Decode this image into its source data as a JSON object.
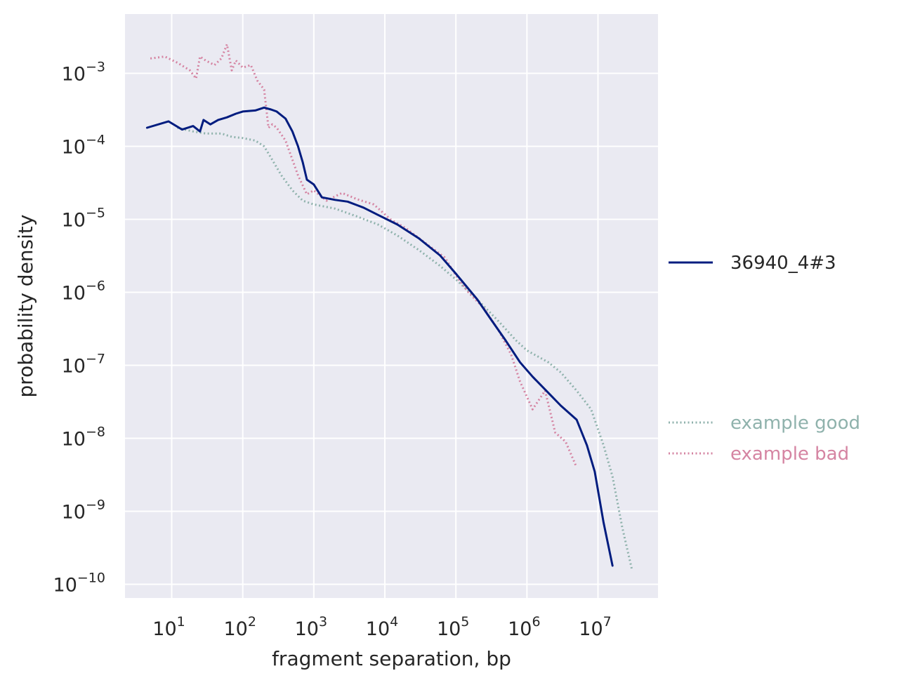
{
  "chart_data": {
    "type": "line",
    "title": "",
    "xlabel": "fragment separation, bp",
    "ylabel": "probability density",
    "xscale": "log",
    "yscale": "log",
    "xlim": [
      2.2,
      70000000
    ],
    "ylim": [
      6.5e-11,
      0.0065
    ],
    "grid": true,
    "x_tick_exponents": [
      1,
      2,
      3,
      4,
      5,
      6,
      7
    ],
    "y_tick_exponents": [
      -3,
      -4,
      -5,
      -6,
      -7,
      -8,
      -9,
      -10
    ],
    "tick_base": "10",
    "legend_placement": "right, outside plot",
    "legend": {
      "main": [
        "36940_4#3"
      ],
      "reference": [
        "example good",
        "example bad"
      ]
    },
    "series": [
      {
        "name": "36940_4#3",
        "style": "solid",
        "color": "#001c7f",
        "points": [
          [
            4.5,
            0.00018
          ],
          [
            9,
            0.00022
          ],
          [
            14,
            0.00017
          ],
          [
            20,
            0.00019
          ],
          [
            25,
            0.00016
          ],
          [
            28,
            0.00023
          ],
          [
            35,
            0.0002
          ],
          [
            45,
            0.00023
          ],
          [
            60,
            0.00025
          ],
          [
            80,
            0.00028
          ],
          [
            100,
            0.0003
          ],
          [
            150,
            0.00031
          ],
          [
            200,
            0.00034
          ],
          [
            250,
            0.00032
          ],
          [
            300,
            0.0003
          ],
          [
            400,
            0.00024
          ],
          [
            500,
            0.00016
          ],
          [
            600,
            0.0001
          ],
          [
            700,
            6e-05
          ],
          [
            800,
            3.5e-05
          ],
          [
            1000,
            3e-05
          ],
          [
            1300,
            2e-05
          ],
          [
            2000,
            1.85e-05
          ],
          [
            3000,
            1.75e-05
          ],
          [
            5000,
            1.45e-05
          ],
          [
            8000,
            1.15e-05
          ],
          [
            15000,
            8.5e-06
          ],
          [
            30000,
            5.5e-06
          ],
          [
            60000,
            3.2e-06
          ],
          [
            100000,
            1.8e-06
          ],
          [
            200000,
            8e-07
          ],
          [
            300000,
            4.5e-07
          ],
          [
            500000,
            2.2e-07
          ],
          [
            800000,
            1.1e-07
          ],
          [
            1200000,
            7e-08
          ],
          [
            2000000,
            4.2e-08
          ],
          [
            3000000,
            2.8e-08
          ],
          [
            5000000,
            1.8e-08
          ],
          [
            7000000,
            8e-09
          ],
          [
            9000000,
            3.5e-09
          ],
          [
            12000000,
            7e-10
          ],
          [
            16000000,
            1.8e-10
          ]
        ]
      },
      {
        "name": "example good",
        "style": "dotted",
        "color": "#8fb2ac",
        "points": [
          [
            12,
            0.00018
          ],
          [
            20,
            0.00016
          ],
          [
            30,
            0.00015
          ],
          [
            50,
            0.00015
          ],
          [
            70,
            0.000135
          ],
          [
            100,
            0.00013
          ],
          [
            150,
            0.00012
          ],
          [
            200,
            0.0001
          ],
          [
            250,
            7e-05
          ],
          [
            350,
            4e-05
          ],
          [
            500,
            2.5e-05
          ],
          [
            700,
            1.8e-05
          ],
          [
            1000,
            1.6e-05
          ],
          [
            2000,
            1.4e-05
          ],
          [
            4000,
            1.1e-05
          ],
          [
            8000,
            8.5e-06
          ],
          [
            15000,
            6e-06
          ],
          [
            30000,
            3.8e-06
          ],
          [
            60000,
            2.3e-06
          ],
          [
            100000,
            1.5e-06
          ],
          [
            200000,
            8e-07
          ],
          [
            400000,
            4e-07
          ],
          [
            700000,
            2.2e-07
          ],
          [
            1000000,
            1.6e-07
          ],
          [
            2000000,
            1.1e-07
          ],
          [
            3000000,
            8e-08
          ],
          [
            5000000,
            4.5e-08
          ],
          [
            8000000,
            2.5e-08
          ],
          [
            12000000,
            8e-09
          ],
          [
            16000000,
            3e-09
          ],
          [
            22000000,
            6e-10
          ],
          [
            30000000,
            1.6e-10
          ]
        ]
      },
      {
        "name": "example bad",
        "style": "dotted",
        "color": "#d584a2",
        "points": [
          [
            5,
            0.0016
          ],
          [
            8,
            0.0017
          ],
          [
            12,
            0.0014
          ],
          [
            18,
            0.0011
          ],
          [
            22,
            0.00085
          ],
          [
            25,
            0.0017
          ],
          [
            30,
            0.0015
          ],
          [
            40,
            0.0013
          ],
          [
            50,
            0.0016
          ],
          [
            60,
            0.0025
          ],
          [
            70,
            0.0011
          ],
          [
            80,
            0.0015
          ],
          [
            100,
            0.0012
          ],
          [
            130,
            0.0013
          ],
          [
            160,
            0.0008
          ],
          [
            200,
            0.0006
          ],
          [
            230,
            0.00018
          ],
          [
            260,
            0.0002
          ],
          [
            300,
            0.00018
          ],
          [
            400,
            0.00012
          ],
          [
            600,
            4e-05
          ],
          [
            800,
            2.2e-05
          ],
          [
            1000,
            2.5e-05
          ],
          [
            1500,
            1.8e-05
          ],
          [
            2500,
            2.3e-05
          ],
          [
            4000,
            1.9e-05
          ],
          [
            7000,
            1.6e-05
          ],
          [
            12000,
            1e-05
          ],
          [
            20000,
            7.5e-06
          ],
          [
            40000,
            4.5e-06
          ],
          [
            70000,
            3e-06
          ],
          [
            100000,
            1.7e-06
          ],
          [
            150000,
            1e-06
          ],
          [
            250000,
            6e-07
          ],
          [
            400000,
            3e-07
          ],
          [
            600000,
            1.4e-07
          ],
          [
            800000,
            6e-08
          ],
          [
            1200000,
            2.5e-08
          ],
          [
            1800000,
            4.5e-08
          ],
          [
            2500000,
            1.2e-08
          ],
          [
            3500000,
            9e-09
          ],
          [
            5000000,
            4e-09
          ]
        ]
      }
    ]
  }
}
